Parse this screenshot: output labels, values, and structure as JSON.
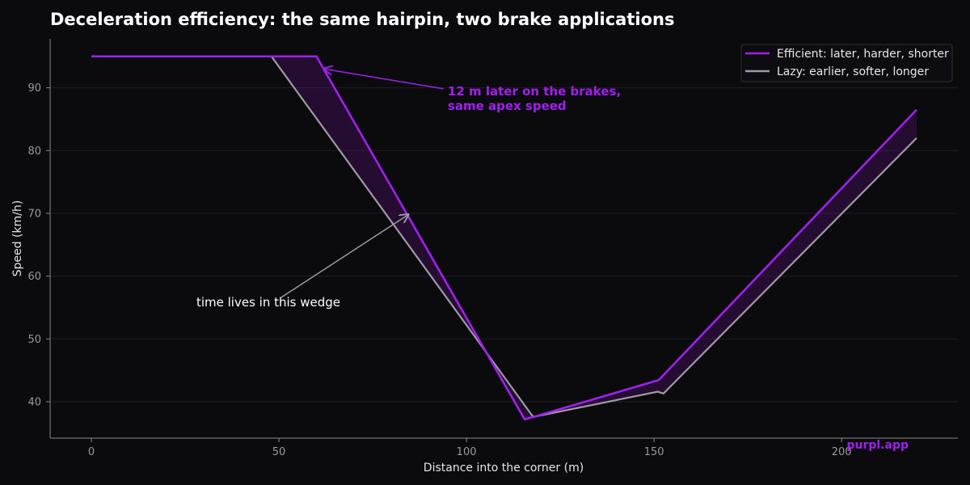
{
  "chart_data": {
    "type": "line",
    "title": "Deceleration efficiency: the same hairpin, two brake applications",
    "xlabel": "Distance into the corner (m)",
    "ylabel": "Speed (km/h)",
    "xlim": [
      -11,
      231
    ],
    "ylim": [
      34.2,
      97.8
    ],
    "xticks": [
      0,
      50,
      100,
      150,
      200
    ],
    "yticks": [
      40,
      50,
      60,
      70,
      80,
      90
    ],
    "grid": true,
    "legend_position": "top-right",
    "series": [
      {
        "name": "Efficient: later, harder, shorter",
        "color": "#a020f0",
        "x": [
          0,
          60,
          115.5,
          118,
          151,
          151.5,
          220
        ],
        "y": [
          95,
          95,
          37.2,
          37.6,
          43.4,
          43.6,
          86.5
        ]
      },
      {
        "name": "Lazy: earlier, softer, longer",
        "color": "#9e9aa3",
        "x": [
          0,
          48,
          117.5,
          118,
          151,
          152.5,
          220
        ],
        "y": [
          95,
          95,
          37.8,
          37.6,
          41.6,
          41.3,
          82
        ]
      }
    ],
    "annotations": [
      {
        "lines": [
          "12 m later on the brakes,",
          "same apex speed"
        ],
        "color": "#a020f0",
        "text_x": 95,
        "text_y": 88.8,
        "arrow_to_x": 62,
        "arrow_to_y": 93
      },
      {
        "lines": [
          "time lives in this wedge"
        ],
        "color": "#ffffff",
        "text_x": 28,
        "text_y": 55.2,
        "arrow_to_x": 84.5,
        "arrow_to_y": 69.8
      }
    ],
    "watermark": "purpl.app"
  }
}
